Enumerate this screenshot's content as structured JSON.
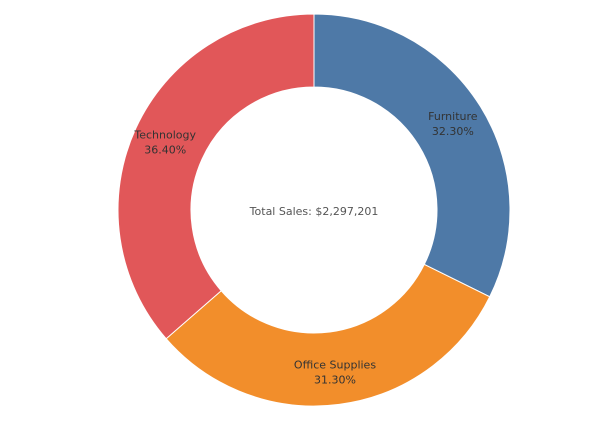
{
  "chart_data": {
    "type": "pie",
    "variant": "donut",
    "title": "",
    "center_label": "Total Sales: $2,297,201",
    "slices": [
      {
        "label": "Furniture",
        "value": 32.3,
        "value_label": "32.30%",
        "color": "#4E79A7"
      },
      {
        "label": "Office Supplies",
        "value": 31.3,
        "value_label": "31.30%",
        "color": "#F28E2B"
      },
      {
        "label": "Technology",
        "value": 36.4,
        "value_label": "36.40%",
        "color": "#E15759"
      }
    ],
    "start_angle": "12 o'clock",
    "direction": "clockwise",
    "legend": "none"
  }
}
